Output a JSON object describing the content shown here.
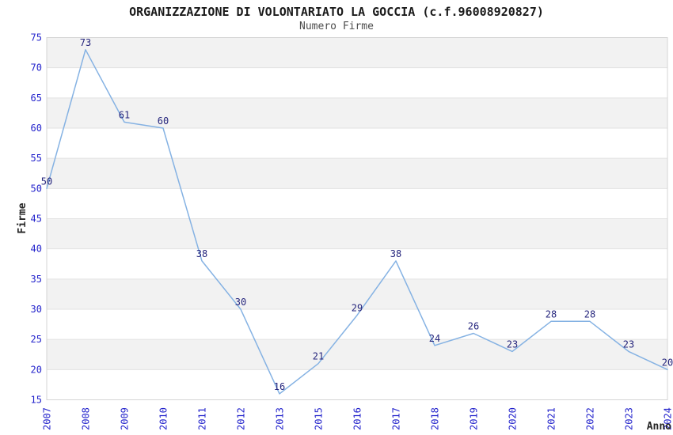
{
  "header": {
    "title": "ORGANIZZAZIONE DI VOLONTARIATO LA GOCCIA (c.f.96008920827)",
    "subtitle": "Numero Firme"
  },
  "chart_data": {
    "type": "line",
    "title": "ORGANIZZAZIONE DI VOLONTARIATO LA GOCCIA (c.f.96008920827)",
    "subtitle": "Numero Firme",
    "xlabel": "Anno",
    "ylabel": "Firme",
    "categories": [
      "2007",
      "2008",
      "2009",
      "2010",
      "2011",
      "2012",
      "2013",
      "2015",
      "2016",
      "2017",
      "2018",
      "2019",
      "2020",
      "2021",
      "2022",
      "2023",
      "2024"
    ],
    "values": [
      50,
      73,
      61,
      60,
      38,
      30,
      16,
      21,
      29,
      38,
      24,
      26,
      23,
      28,
      28,
      23,
      20
    ],
    "ylim": [
      15,
      75
    ],
    "ytick_step": 5,
    "yticks": [
      15,
      20,
      25,
      30,
      35,
      40,
      45,
      50,
      55,
      60,
      65,
      70,
      75
    ],
    "grid": true,
    "alternating_bands": true,
    "legend_position": "none",
    "point_markers": false,
    "colors": {
      "line": "#85b2e3",
      "data_label": "#26267d",
      "tick_label": "#2424cc",
      "title": "#1a1a1a",
      "subtitle": "#4d4d4d",
      "axis_title": "#262626",
      "band": "#f2f2f2",
      "gridline": "#e2e2e2",
      "plot_border": "#d4d4d4",
      "background": "#ffffff"
    }
  }
}
